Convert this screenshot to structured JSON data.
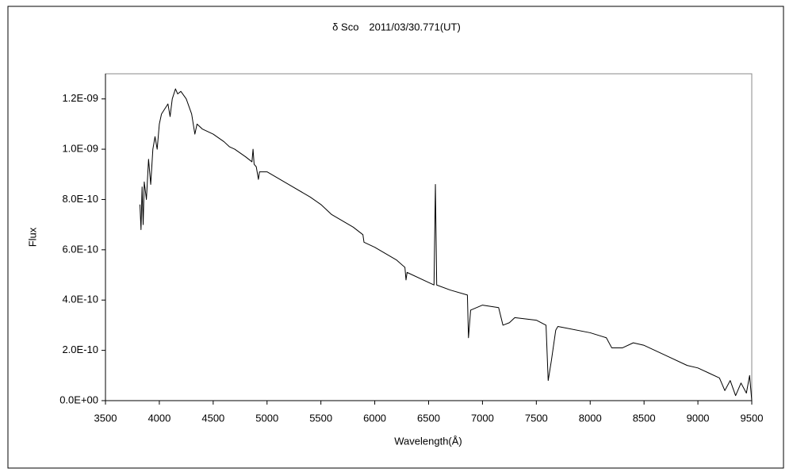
{
  "chart_data": {
    "type": "line",
    "title": "δ Sco　2011/03/30.771(UT)",
    "x_label": "Wavelength(Å)",
    "y_label": "Flux",
    "x": [
      3820,
      3830,
      3840,
      3850,
      3860,
      3880,
      3900,
      3920,
      3940,
      3960,
      3980,
      4000,
      4020,
      4050,
      4080,
      4100,
      4120,
      4150,
      4170,
      4200,
      4250,
      4300,
      4330,
      4350,
      4400,
      4500,
      4600,
      4650,
      4700,
      4800,
      4860,
      4870,
      4880,
      4900,
      4920,
      4930,
      5000,
      5200,
      5400,
      5500,
      5600,
      5800,
      5890,
      5900,
      6000,
      6200,
      6280,
      6290,
      6300,
      6500,
      6550,
      6563,
      6575,
      6700,
      6860,
      6870,
      6890,
      7000,
      7150,
      7190,
      7250,
      7300,
      7500,
      7590,
      7610,
      7640,
      7680,
      7700,
      8000,
      8150,
      8200,
      8300,
      8400,
      8500,
      8700,
      8900,
      9000,
      9100,
      9200,
      9250,
      9300,
      9350,
      9400,
      9450,
      9480,
      9500
    ],
    "values": [
      7.8e-10,
      6.8e-10,
      8.5e-10,
      7e-10,
      8.7e-10,
      8e-10,
      9.6e-10,
      8.6e-10,
      1e-09,
      1.05e-09,
      1e-09,
      1.1e-09,
      1.14e-09,
      1.16e-09,
      1.18e-09,
      1.13e-09,
      1.2e-09,
      1.24e-09,
      1.22e-09,
      1.23e-09,
      1.2e-09,
      1.14e-09,
      1.06e-09,
      1.1e-09,
      1.08e-09,
      1.06e-09,
      1.03e-09,
      1.01e-09,
      1e-09,
      9.7e-10,
      9.5e-10,
      1e-09,
      9.4e-10,
      9.3e-10,
      8.8e-10,
      9.1e-10,
      9.1e-10,
      8.6e-10,
      8.1e-10,
      7.8e-10,
      7.4e-10,
      6.9e-10,
      6.6e-10,
      6.3e-10,
      6.1e-10,
      5.6e-10,
      5.3e-10,
      4.8e-10,
      5.1e-10,
      4.7e-10,
      4.6e-10,
      8.6e-10,
      4.6e-10,
      4.4e-10,
      4.2e-10,
      2.5e-10,
      3.6e-10,
      3.8e-10,
      3.7e-10,
      3e-10,
      3.1e-10,
      3.3e-10,
      3.2e-10,
      3e-10,
      8e-11,
      1.6e-10,
      2.8e-10,
      2.95e-10,
      2.7e-10,
      2.5e-10,
      2.1e-10,
      2.1e-10,
      2.3e-10,
      2.2e-10,
      1.8e-10,
      1.4e-10,
      1.3e-10,
      1.1e-10,
      9e-11,
      4e-11,
      8e-11,
      2e-11,
      7e-11,
      3e-11,
      1e-10,
      0
    ],
    "color": "#000000",
    "xlim": [
      3500,
      9500
    ],
    "xticks": [
      3500,
      4000,
      4500,
      5000,
      5500,
      6000,
      6500,
      7000,
      7500,
      8000,
      8500,
      9000,
      9500
    ],
    "ylim": [
      0,
      1.3e-09
    ],
    "yticks": [
      {
        "value": 0,
        "label": "0.0E+00"
      },
      {
        "value": 2e-10,
        "label": "2.0E-10"
      },
      {
        "value": 4e-10,
        "label": "4.0E-10"
      },
      {
        "value": 6e-10,
        "label": "6.0E-10"
      },
      {
        "value": 8e-10,
        "label": "8.0E-10"
      },
      {
        "value": 1e-09,
        "label": "1.0E-09"
      },
      {
        "value": 1.2e-09,
        "label": "1.2E-09"
      }
    ],
    "grid": false
  }
}
